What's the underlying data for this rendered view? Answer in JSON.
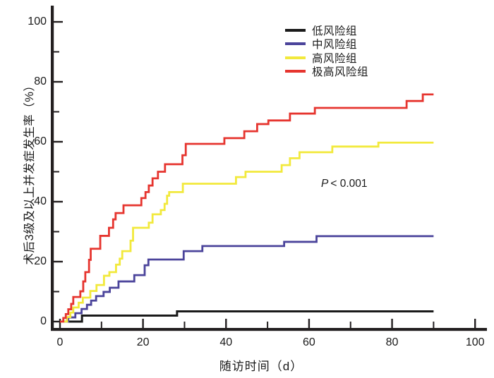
{
  "figure": {
    "x_axis": {
      "title": "随访时间（d）",
      "range": [
        0,
        100
      ],
      "major_ticks": [
        0,
        20,
        40,
        60,
        80,
        100
      ],
      "tick_labels": [
        "0",
        "20",
        "40",
        "60",
        "80",
        "100"
      ],
      "minor_ticks": [
        10,
        30,
        50,
        70,
        90
      ]
    },
    "y_axis": {
      "title": "术后3级及以上并发症发生率（%）",
      "range": [
        0,
        100
      ],
      "major_ticks": [
        0,
        20,
        40,
        60,
        80,
        100
      ],
      "tick_labels": [
        "0",
        "20",
        "40",
        "60",
        "80",
        "100"
      ],
      "minor_ticks": [
        10,
        30,
        50,
        70,
        90
      ]
    },
    "annotation": {
      "p_italic": "P",
      "p_rest": "< 0.001"
    },
    "colors": {
      "axis": "#231f20",
      "low_risk": "#1a1a1a",
      "medium_risk": "#4b449b",
      "high_risk": "#f2e93c",
      "very_high_risk": "#e6352f"
    }
  },
  "chart_data": {
    "type": "line",
    "subtype": "step-cumulative-incidence",
    "title": "",
    "xlabel": "随访时间（d）",
    "ylabel": "术后3级及以上并发症发生率（%）",
    "xlim": [
      0,
      100
    ],
    "ylim": [
      0,
      100
    ],
    "grid": false,
    "legend_position": "upper-right-inside",
    "annotation": "P < 0.001",
    "series": [
      {
        "name": "低风险组",
        "color": "#1a1a1a",
        "points": [
          [
            0,
            0
          ],
          [
            5.3,
            2
          ],
          [
            28.2,
            3.4
          ],
          [
            90,
            3.4
          ]
        ]
      },
      {
        "name": "中风险组",
        "color": "#4b449b",
        "points": [
          [
            0,
            0
          ],
          [
            2,
            1.4
          ],
          [
            3.7,
            2.8
          ],
          [
            5.2,
            4.2
          ],
          [
            6.5,
            5.6
          ],
          [
            7.5,
            7
          ],
          [
            8.7,
            8.5
          ],
          [
            10.5,
            9.9
          ],
          [
            12,
            11.3
          ],
          [
            14.1,
            13.4
          ],
          [
            17.9,
            15.5
          ],
          [
            20.4,
            18.8
          ],
          [
            21.3,
            20.7
          ],
          [
            29.8,
            23.5
          ],
          [
            34.3,
            25.2
          ],
          [
            54,
            26.6
          ],
          [
            61.8,
            28.5
          ],
          [
            90,
            28.5
          ]
        ]
      },
      {
        "name": "高风险组",
        "color": "#f2e93c",
        "points": [
          [
            0,
            0
          ],
          [
            1.7,
            1.5
          ],
          [
            2.5,
            3
          ],
          [
            3.2,
            4.7
          ],
          [
            4.5,
            6.3
          ],
          [
            5.5,
            8
          ],
          [
            7.3,
            10.2
          ],
          [
            8.8,
            12.2
          ],
          [
            10.6,
            15.3
          ],
          [
            11.9,
            16.5
          ],
          [
            13.5,
            19
          ],
          [
            14.4,
            21
          ],
          [
            15,
            23.5
          ],
          [
            17,
            27
          ],
          [
            17.6,
            31.3
          ],
          [
            21.4,
            33
          ],
          [
            22.3,
            35.8
          ],
          [
            24.3,
            37.2
          ],
          [
            25.2,
            39.3
          ],
          [
            25.8,
            42
          ],
          [
            26.3,
            43.2
          ],
          [
            29.6,
            46
          ],
          [
            42.4,
            48.2
          ],
          [
            44.7,
            50
          ],
          [
            53.4,
            52.2
          ],
          [
            55.4,
            54.5
          ],
          [
            57.7,
            56.5
          ],
          [
            65.6,
            58.4
          ],
          [
            76.7,
            59.7
          ],
          [
            90,
            59.7
          ]
        ]
      },
      {
        "name": "极高风险组",
        "color": "#e6352f",
        "points": [
          [
            0,
            0
          ],
          [
            0.8,
            1.2
          ],
          [
            1.4,
            2.5
          ],
          [
            2,
            4.1
          ],
          [
            2.7,
            5.9
          ],
          [
            3.2,
            8.2
          ],
          [
            4.9,
            10.1
          ],
          [
            5.6,
            13.4
          ],
          [
            6.1,
            16.5
          ],
          [
            7,
            20.6
          ],
          [
            7.4,
            24.3
          ],
          [
            9.7,
            28.6
          ],
          [
            11.8,
            31.3
          ],
          [
            12.8,
            34.1
          ],
          [
            13.4,
            36.2
          ],
          [
            15.3,
            38.8
          ],
          [
            19.6,
            41.2
          ],
          [
            20.6,
            43.2
          ],
          [
            21.4,
            45.4
          ],
          [
            22.3,
            47.8
          ],
          [
            23.6,
            50
          ],
          [
            25.3,
            52.5
          ],
          [
            29.5,
            55.5
          ],
          [
            30.3,
            59.3
          ],
          [
            39.6,
            61.2
          ],
          [
            44.4,
            63.5
          ],
          [
            47.5,
            65.9
          ],
          [
            50.2,
            67.1
          ],
          [
            55.4,
            69.4
          ],
          [
            61.4,
            71.3
          ],
          [
            83.5,
            73.6
          ],
          [
            87.4,
            75.8
          ],
          [
            90,
            75.8
          ]
        ]
      }
    ]
  }
}
